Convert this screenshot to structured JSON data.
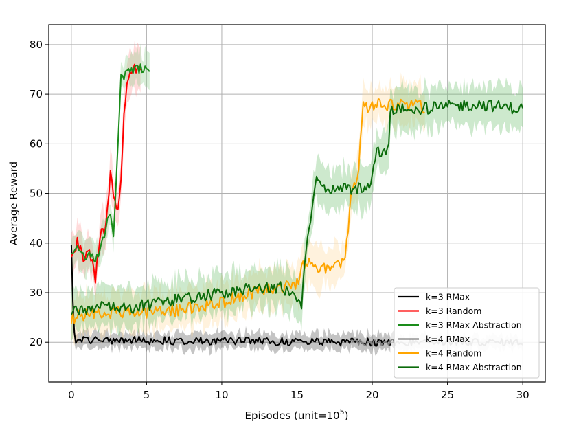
{
  "chart_data": {
    "type": "line",
    "xlabel": "Episodes (unit=10",
    "xlabel_exp": "5",
    "xlabel_close": ")",
    "ylabel": "Average Reward",
    "xlim": [
      -1.5,
      31.5
    ],
    "ylim": [
      12,
      84
    ],
    "xticks": [
      0,
      5,
      10,
      15,
      20,
      25,
      30
    ],
    "yticks": [
      20,
      30,
      40,
      50,
      60,
      70,
      80
    ],
    "grid": true,
    "legend_position": "lower-right",
    "series": [
      {
        "name": "k=3 RMax",
        "color": "#000000",
        "band_color": "#555555",
        "x_end": 21.2,
        "points": [
          [
            0,
            39
          ],
          [
            0.15,
            22
          ],
          [
            0.3,
            20.5
          ],
          [
            21.2,
            20
          ]
        ],
        "baseline": 20,
        "noise": 0.8,
        "band": 1.6
      },
      {
        "name": "k=3 Random",
        "color": "#ff0000",
        "band_color": "#ff9999",
        "x_end": 4.6,
        "points": [
          [
            0,
            38
          ],
          [
            0.4,
            40
          ],
          [
            0.8,
            37
          ],
          [
            1.2,
            38
          ],
          [
            1.6,
            33
          ],
          [
            2.0,
            42
          ],
          [
            2.3,
            43
          ],
          [
            2.6,
            54
          ],
          [
            3.0,
            46
          ],
          [
            3.3,
            52
          ],
          [
            3.5,
            66
          ],
          [
            3.7,
            73
          ],
          [
            4.0,
            75
          ],
          [
            4.3,
            75.5
          ],
          [
            4.6,
            75.5
          ]
        ],
        "noise": 1.2,
        "band": 4
      },
      {
        "name": "k=3 RMax Abstraction",
        "color": "#1a8c1a",
        "band_color": "#8fce8f",
        "x_end": 5.2,
        "points": [
          [
            0,
            38
          ],
          [
            0.4,
            40
          ],
          [
            0.8,
            37
          ],
          [
            1.2,
            38
          ],
          [
            1.6,
            36
          ],
          [
            2.0,
            40
          ],
          [
            2.3,
            43
          ],
          [
            2.6,
            46
          ],
          [
            2.8,
            42
          ],
          [
            3.1,
            60
          ],
          [
            3.3,
            73
          ],
          [
            3.7,
            74
          ],
          [
            4.0,
            75
          ],
          [
            5.2,
            75.5
          ]
        ],
        "noise": 1.0,
        "band": 3
      },
      {
        "name": "k=4 RMax",
        "color": "#808080",
        "band_color": "#bbbbbb",
        "x_start": 18.5,
        "x_end": 30,
        "points": [
          [
            18.5,
            20
          ],
          [
            30,
            20
          ]
        ],
        "baseline": 20,
        "noise": 0.7,
        "band": 1.3
      },
      {
        "name": "k=4 Random",
        "color": "#ffa500",
        "band_color": "#ffdb9e",
        "x_end": 23.5,
        "points": [
          [
            0,
            25
          ],
          [
            2,
            26
          ],
          [
            4,
            26
          ],
          [
            6,
            26
          ],
          [
            8,
            27
          ],
          [
            10,
            28
          ],
          [
            12,
            30
          ],
          [
            14,
            31
          ],
          [
            15,
            32
          ],
          [
            15.5,
            36
          ],
          [
            16.5,
            35
          ],
          [
            17.5,
            35
          ],
          [
            18.2,
            36
          ],
          [
            18.6,
            51
          ],
          [
            19.0,
            52
          ],
          [
            19.4,
            67.5
          ],
          [
            20.5,
            68
          ],
          [
            23.5,
            67.5
          ]
        ],
        "noise": 1.3,
        "band": 4
      },
      {
        "name": "k=4 RMax Abstraction",
        "color": "#0b6b0b",
        "band_color": "#6fbf6f",
        "x_end": 30,
        "points": [
          [
            0,
            26
          ],
          [
            2,
            27
          ],
          [
            4,
            27
          ],
          [
            6,
            28
          ],
          [
            8,
            29
          ],
          [
            10,
            30
          ],
          [
            12,
            31
          ],
          [
            14,
            31
          ],
          [
            15,
            29
          ],
          [
            15.3,
            27
          ],
          [
            15.5,
            36
          ],
          [
            15.9,
            45
          ],
          [
            16.3,
            54
          ],
          [
            16.8,
            51
          ],
          [
            17.4,
            51
          ],
          [
            18.0,
            51
          ],
          [
            18.5,
            51
          ],
          [
            19.0,
            51
          ],
          [
            19.6,
            51
          ],
          [
            20.0,
            53
          ],
          [
            20.3,
            58
          ],
          [
            20.8,
            59
          ],
          [
            21.1,
            59
          ],
          [
            21.2,
            67
          ],
          [
            23.0,
            67
          ],
          [
            25.0,
            67.5
          ],
          [
            27.0,
            68
          ],
          [
            30,
            67
          ]
        ],
        "noise": 1.2,
        "band": 4
      }
    ]
  }
}
